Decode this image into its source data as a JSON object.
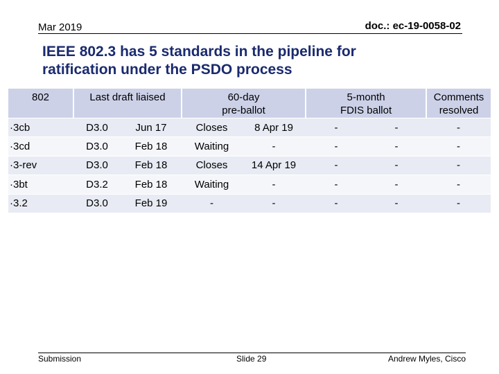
{
  "header": {
    "date": "Mar 2019",
    "doc_id": "doc.: ec-19-0058-02"
  },
  "title": {
    "line1": "IEEE 802.3 has 5 standards in the pipeline for",
    "line2": "ratification under the PSDO process"
  },
  "table": {
    "headers": {
      "standard": "802",
      "last_draft": "Last draft liaised",
      "preballot_line1": "60-day",
      "preballot_line2": "pre-ballot",
      "fdis_line1": "5-month",
      "fdis_line2": "FDIS ballot",
      "comments_line1": "Comments",
      "comments_line2": "resolved"
    },
    "rows": [
      [
        "·3cb",
        "D3.0",
        "Jun 17",
        "Closes",
        "8 Apr 19",
        "-",
        "-",
        "-"
      ],
      [
        "·3cd",
        "D3.0",
        "Feb 18",
        "Waiting",
        "-",
        "-",
        "-",
        "-"
      ],
      [
        "·3-rev",
        "D3.0",
        "Feb 18",
        "Closes",
        "14 Apr 19",
        "-",
        "-",
        "-"
      ],
      [
        "·3bt",
        "D3.2",
        "Feb 18",
        "Waiting",
        "-",
        "-",
        "-",
        "-"
      ],
      [
        "·3.2",
        "D3.0",
        "Feb 19",
        "-",
        "-",
        "-",
        "-",
        "-"
      ]
    ]
  },
  "footer": {
    "left": "Submission",
    "center": "Slide 29",
    "right": "Andrew Myles, Cisco"
  }
}
